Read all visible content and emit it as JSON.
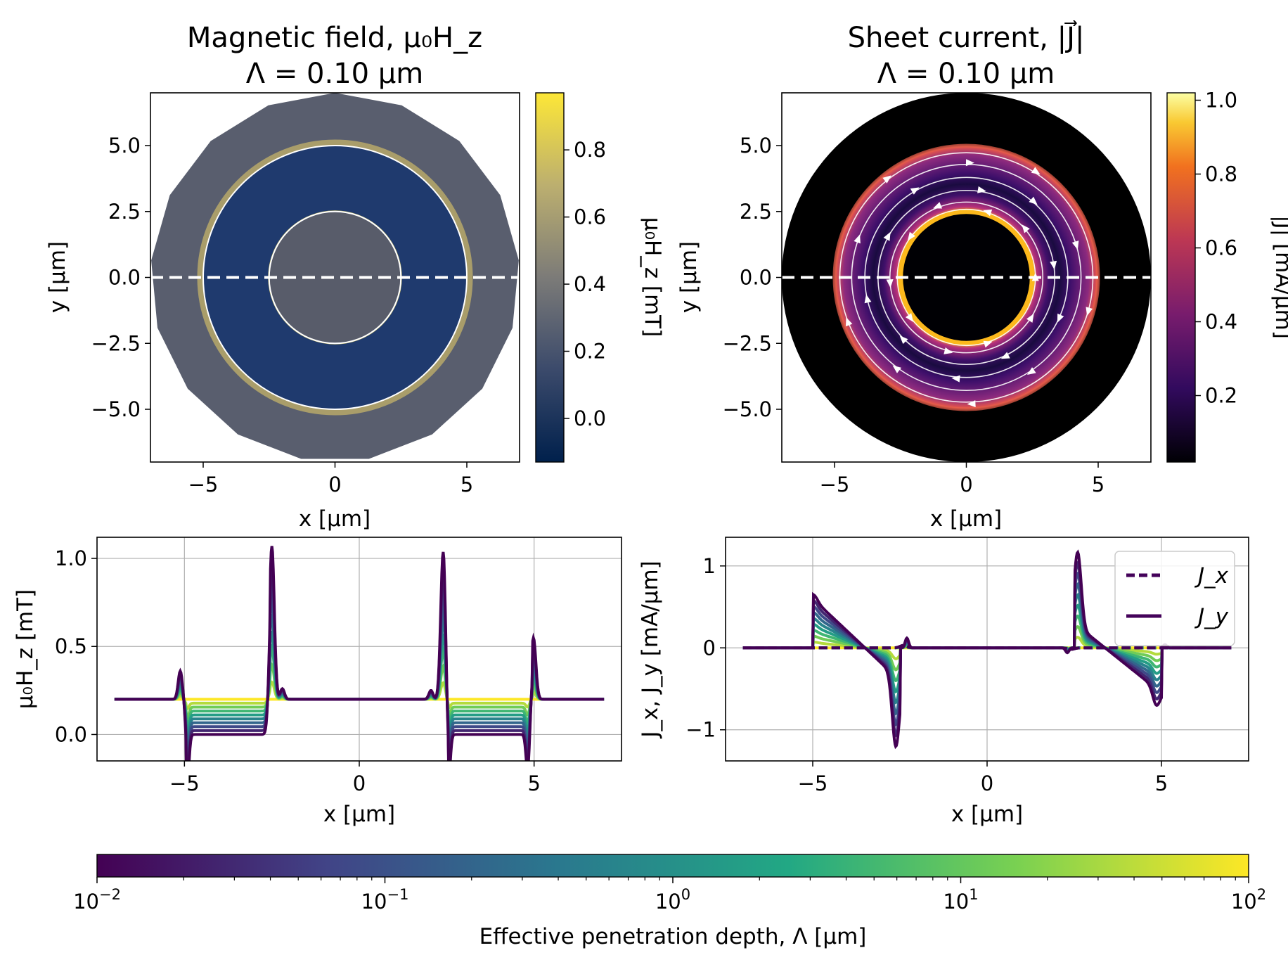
{
  "chart_data": [
    {
      "type": "heatmap",
      "title_line1": "Magnetic field, μ₀H_z",
      "title_line2": "Λ = 0.10 μm",
      "xlabel": "x [µm]",
      "ylabel": "y [µm]",
      "xlim": [
        -7,
        7
      ],
      "ylim": [
        -7,
        7
      ],
      "xticks": [
        "−5",
        "0",
        "5"
      ],
      "yticks": [
        "5.0",
        "2.5",
        "0.0",
        "−2.5",
        "−5.0"
      ],
      "colorbar": {
        "label": "μ₀H_z [mT]",
        "ticks": [
          "0.8",
          "0.6",
          "0.4",
          "0.2",
          "0.0"
        ],
        "range": [
          -0.13,
          0.97
        ],
        "colormap": "cividis"
      },
      "geometry": {
        "outer_radius": 7,
        "ring_outer_radius": 5,
        "ring_inner_radius": 2.5,
        "cut_line_y": 0
      },
      "colors": {
        "outside": "#595e6e",
        "ring": "#1f3a6e",
        "hole": "#585c6a"
      }
    },
    {
      "type": "heatmap",
      "title_line1": "Sheet current, |J⃗|",
      "title_line2": "Λ = 0.10 μm",
      "xlabel": "x [µm]",
      "ylabel": "y [µm]",
      "xlim": [
        -7,
        7
      ],
      "ylim": [
        -7,
        7
      ],
      "xticks": [
        "−5",
        "0",
        "5"
      ],
      "yticks": [
        "5.0",
        "2.5",
        "0.0",
        "−2.5",
        "−5.0"
      ],
      "colorbar": {
        "label": "|J⃗| [mA/µm]",
        "ticks": [
          "1.0",
          "0.8",
          "0.6",
          "0.4",
          "0.2"
        ],
        "range": [
          0.02,
          1.02
        ],
        "colormap": "inferno"
      },
      "colors": {
        "background": "#000000",
        "ring": "#6a1b7e"
      }
    },
    {
      "type": "line",
      "xlabel": "x [μm]",
      "ylabel": "μ₀H_z [mT]",
      "xlim": [
        -7.5,
        7.5
      ],
      "ylim": [
        -0.15,
        1.12
      ],
      "xticks": [
        "−5",
        "0",
        "5"
      ],
      "yticks": [
        "1.0",
        "0.5",
        "0.0"
      ],
      "grid": true,
      "series_count": 10
    },
    {
      "type": "line",
      "xlabel": "x [μm]",
      "ylabel": "J_x, J_y [mA/µm]",
      "xlim": [
        -7.5,
        7.5
      ],
      "ylim": [
        -1.38,
        1.35
      ],
      "xticks": [
        "−5",
        "0",
        "5"
      ],
      "yticks": [
        "1",
        "0",
        "−1"
      ],
      "grid": true,
      "legend": {
        "position": "top-right",
        "entries": [
          {
            "label": "J_x",
            "style": "dashed"
          },
          {
            "label": "J_y",
            "style": "solid"
          }
        ]
      },
      "series_count": 10
    },
    {
      "type": "colorbar",
      "label": "Effective penetration depth, Λ [µm]",
      "scale": "log",
      "range": [
        0.01,
        100
      ],
      "ticks": [
        {
          "base": "10",
          "exp": "−2"
        },
        {
          "base": "10",
          "exp": "−1"
        },
        {
          "base": "10",
          "exp": "0"
        },
        {
          "base": "10",
          "exp": "1"
        },
        {
          "base": "10",
          "exp": "2"
        }
      ],
      "colormap": "viridis"
    }
  ]
}
